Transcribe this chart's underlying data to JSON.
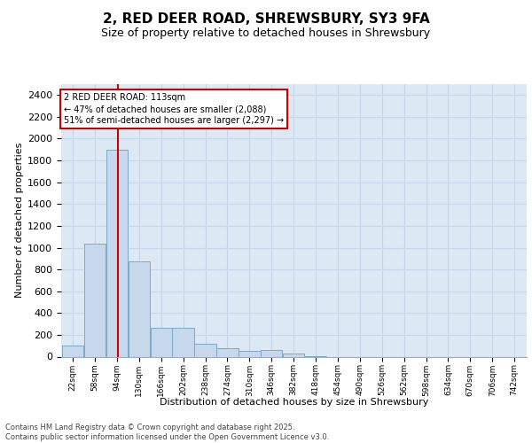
{
  "title_line1": "2, RED DEER ROAD, SHREWSBURY, SY3 9FA",
  "title_line2": "Size of property relative to detached houses in Shrewsbury",
  "xlabel": "Distribution of detached houses by size in Shrewsbury",
  "ylabel": "Number of detached properties",
  "bar_color": "#c8d8ec",
  "bar_edge_color": "#7aaacb",
  "vline_color": "#cc0000",
  "vline_x": 113,
  "annotation_line1": "2 RED DEER ROAD: 113sqm",
  "annotation_line2": "← 47% of detached houses are smaller (2,088)",
  "annotation_line3": "51% of semi-detached houses are larger (2,297) →",
  "annotation_box_edgecolor": "#cc0000",
  "bins_left_edges": [
    22,
    58,
    94,
    130,
    166,
    202,
    238,
    274,
    310,
    346,
    382,
    418,
    454,
    490,
    526,
    562,
    598,
    634,
    670,
    706
  ],
  "bin_width": 36,
  "bar_heights": [
    100,
    1040,
    1900,
    870,
    265,
    265,
    120,
    78,
    55,
    58,
    28,
    5,
    0,
    0,
    0,
    0,
    0,
    0,
    0,
    0
  ],
  "ylim": [
    0,
    2500
  ],
  "yticks": [
    0,
    200,
    400,
    600,
    800,
    1000,
    1200,
    1400,
    1600,
    1800,
    2000,
    2200,
    2400
  ],
  "grid_color": "#c8d4e8",
  "plot_bg_color": "#dce8f4",
  "fig_bg_color": "#ffffff",
  "footer_text": "Contains HM Land Registry data © Crown copyright and database right 2025.\nContains public sector information licensed under the Open Government Licence v3.0.",
  "tick_labels": [
    "22sqm",
    "58sqm",
    "94sqm",
    "130sqm",
    "166sqm",
    "202sqm",
    "238sqm",
    "274sqm",
    "310sqm",
    "346sqm",
    "382sqm",
    "418sqm",
    "454sqm",
    "490sqm",
    "526sqm",
    "562sqm",
    "598sqm",
    "634sqm",
    "670sqm",
    "706sqm",
    "742sqm"
  ],
  "title_fontsize": 11,
  "subtitle_fontsize": 9,
  "ylabel_fontsize": 8,
  "xlabel_fontsize": 8,
  "ytick_fontsize": 8,
  "xtick_fontsize": 6.5,
  "annot_fontsize": 7,
  "footer_fontsize": 6
}
